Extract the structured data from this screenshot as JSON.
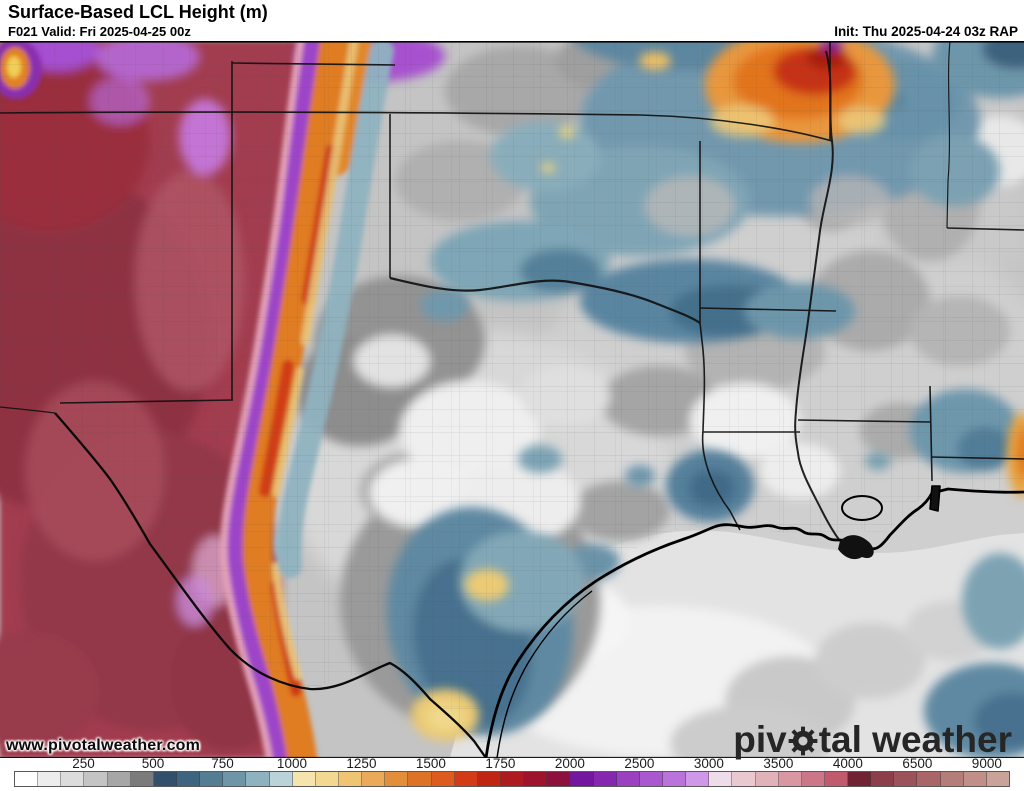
{
  "header": {
    "title": "Surface-Based LCL Height (m)",
    "valid": "F021 Valid: Fri 2025-04-25 00z",
    "init": "Init: Thu 2025-04-24 03z RAP"
  },
  "map": {
    "watermark": "www.pivotalweather.com",
    "logo_pre": "piv",
    "logo_post": "tal weather"
  },
  "legend": {
    "unit": "m",
    "ticks": [
      "250",
      "500",
      "750",
      "1000",
      "1250",
      "1500",
      "1750",
      "2000",
      "2500",
      "3000",
      "3500",
      "4000",
      "6500",
      "9000"
    ],
    "tick_values": [
      250,
      500,
      750,
      1000,
      1250,
      1500,
      1750,
      2000,
      2500,
      3000,
      3500,
      4000,
      6500,
      9000
    ],
    "cells": [
      "#ffffff",
      "#ededed",
      "#dcdcdc",
      "#c4c4c4",
      "#a6a6a6",
      "#7b7b7b",
      "#32506b",
      "#3f647f",
      "#547c93",
      "#6f95a9",
      "#8eb2c0",
      "#b9d3d9",
      "#f5e4ac",
      "#f2d891",
      "#efc473",
      "#eaaa59",
      "#e38e3d",
      "#dd7327",
      "#de5b1f",
      "#d23b16",
      "#c02413",
      "#ad1a1f",
      "#9e142d",
      "#8c113d",
      "#73179e",
      "#8527af",
      "#9a41c2",
      "#aa58d0",
      "#bb73dc",
      "#cf97e8",
      "#eedcea",
      "#e9c9cf",
      "#e2b2bb",
      "#d997a2",
      "#cc7787",
      "#c05a6c",
      "#702433",
      "#8c3f4b",
      "#9c525a",
      "#aa6568",
      "#b57d7a",
      "#bf8f88",
      "#c9a29a"
    ]
  }
}
